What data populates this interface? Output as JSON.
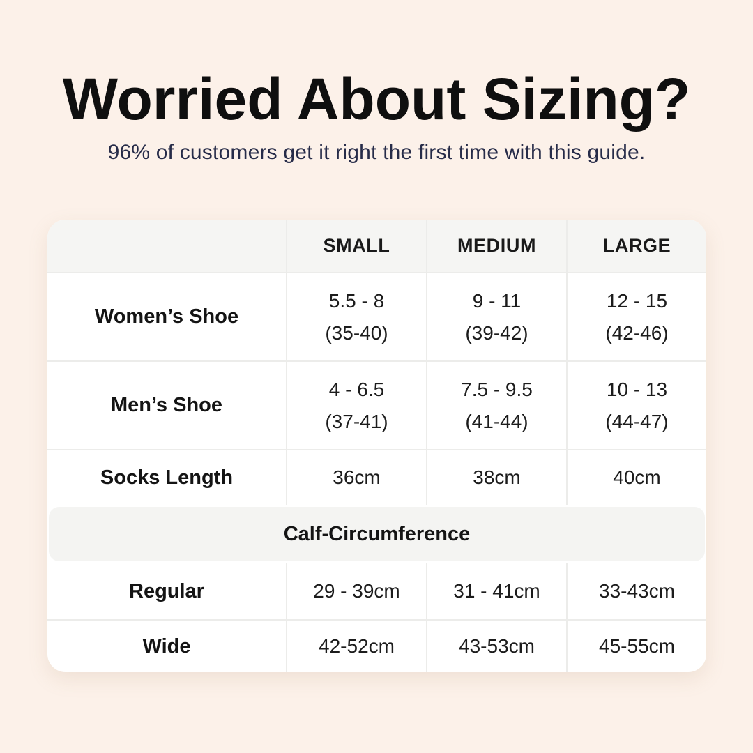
{
  "header": {
    "title": "Worried About Sizing?",
    "subtitle": "96% of customers get it right the first time with this guide."
  },
  "table": {
    "columns": [
      "",
      "SMALL",
      "MEDIUM",
      "LARGE"
    ],
    "rows": [
      {
        "label": "Women’s Shoe",
        "values": [
          "5.5 - 8\n(35-40)",
          "9 - 11\n(39-42)",
          "12 - 15\n(42-46)"
        ]
      },
      {
        "label": "Men’s Shoe",
        "values": [
          "4 - 6.5\n(37-41)",
          "7.5 - 9.5\n(41-44)",
          "10 - 13\n(44-47)"
        ]
      },
      {
        "label": "Socks Length",
        "values": [
          "36cm",
          "38cm",
          "40cm"
        ]
      },
      {
        "label": "Regular",
        "values": [
          "29 - 39cm",
          "31 - 41cm",
          "33-43cm"
        ]
      },
      {
        "label": "Wide",
        "values": [
          "42-52cm",
          "43-53cm",
          "45-55cm"
        ]
      }
    ],
    "section_header": "Calf-Circumference"
  },
  "colors": {
    "bg": "#fcf1e9",
    "card": "#ffffff",
    "thead": "#f5f5f3",
    "band": "#f4f4f2",
    "line": "#ececea",
    "title": "#0f0f0f",
    "subtitle": "#272c49",
    "text": "#1c1c1c"
  },
  "chart_data": {
    "type": "table",
    "title": "Worried About Sizing?",
    "subtitle": "96% of customers get it right the first time with this guide.",
    "columns": [
      "",
      "SMALL",
      "MEDIUM",
      "LARGE"
    ],
    "rows": [
      [
        "Women’s Shoe",
        "5.5 - 8 (35-40)",
        "9 - 11 (39-42)",
        "12 - 15 (42-46)"
      ],
      [
        "Men’s Shoe",
        "4 - 6.5 (37-41)",
        "7.5 - 9.5 (41-44)",
        "10 - 13 (44-47)"
      ],
      [
        "Socks Length",
        "36cm",
        "38cm",
        "40cm"
      ],
      [
        "Calf-Circumference",
        "",
        "",
        ""
      ],
      [
        "Regular",
        "29 - 39cm",
        "31 - 41cm",
        "33-43cm"
      ],
      [
        "Wide",
        "42-52cm",
        "43-53cm",
        "45-55cm"
      ]
    ]
  }
}
